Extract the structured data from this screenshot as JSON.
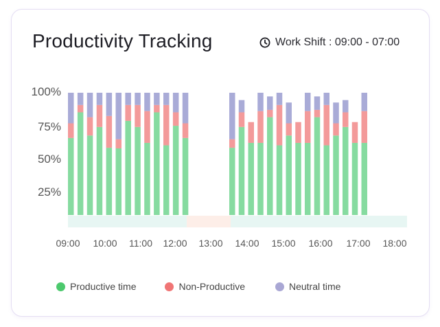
{
  "header": {
    "title": "Productivity Tracking",
    "shift_label": "Work Shift : 09:00 - 07:00",
    "shift_icon": "clock-icon"
  },
  "colors": {
    "productive": "#86dba0",
    "non_productive": "#f39a9a",
    "neutral": "#a9abd7",
    "work_band": "#e7f6f3",
    "break_band": "#fdeee8"
  },
  "legend": [
    {
      "label": "Productive time",
      "color": "#4cc96d"
    },
    {
      "label": "Non-Productive",
      "color": "#f07575"
    },
    {
      "label": "Neutral time",
      "color": "#a9a7d4"
    }
  ],
  "chart_data": {
    "type": "bar",
    "stacked": true,
    "title": "Productivity Tracking",
    "y_ticks": [
      "25%",
      "50%",
      "75%",
      "100%"
    ],
    "ylim": [
      0,
      100
    ],
    "x_ticks": [
      "09:00",
      "10:00",
      "11:00",
      "12:00",
      "13:00",
      "14:00",
      "15:00",
      "16:00",
      "17:00",
      "18:00"
    ],
    "grid": false,
    "legend_position": "bottom",
    "series_names": [
      "Productive time",
      "Non-Productive",
      "Neutral time"
    ],
    "groups": [
      {
        "bars": [
          [
            63,
            12,
            25
          ],
          [
            84,
            6,
            10
          ],
          [
            65,
            15,
            20
          ],
          [
            72,
            18,
            10
          ],
          [
            55,
            26,
            19
          ],
          [
            54.5,
            7.5,
            38
          ],
          [
            77,
            13,
            10
          ],
          [
            72,
            18,
            10
          ],
          [
            59,
            26,
            15
          ],
          [
            84,
            6,
            10
          ],
          [
            57,
            33,
            10
          ],
          [
            73,
            11,
            16
          ],
          [
            63,
            12,
            25
          ]
        ]
      },
      {
        "bars": [
          [
            55,
            7,
            38
          ],
          [
            72,
            12,
            10
          ],
          [
            59,
            17,
            0
          ],
          [
            59,
            26,
            15
          ],
          [
            80,
            6,
            11
          ],
          [
            57,
            33,
            10
          ],
          [
            65,
            10,
            17
          ],
          [
            59,
            17,
            0
          ],
          [
            59,
            26,
            15
          ],
          [
            80,
            6,
            11
          ],
          [
            57,
            33,
            10
          ],
          [
            65,
            10,
            17
          ],
          [
            72,
            12,
            10
          ],
          [
            59,
            17,
            0
          ],
          [
            59,
            26,
            15
          ]
        ]
      }
    ],
    "timeline": [
      {
        "type": "work",
        "from": "09:00",
        "to": "12:20"
      },
      {
        "type": "break",
        "from": "12:20",
        "to": "13:35"
      },
      {
        "type": "work",
        "from": "13:35",
        "to": "18:20"
      }
    ]
  }
}
